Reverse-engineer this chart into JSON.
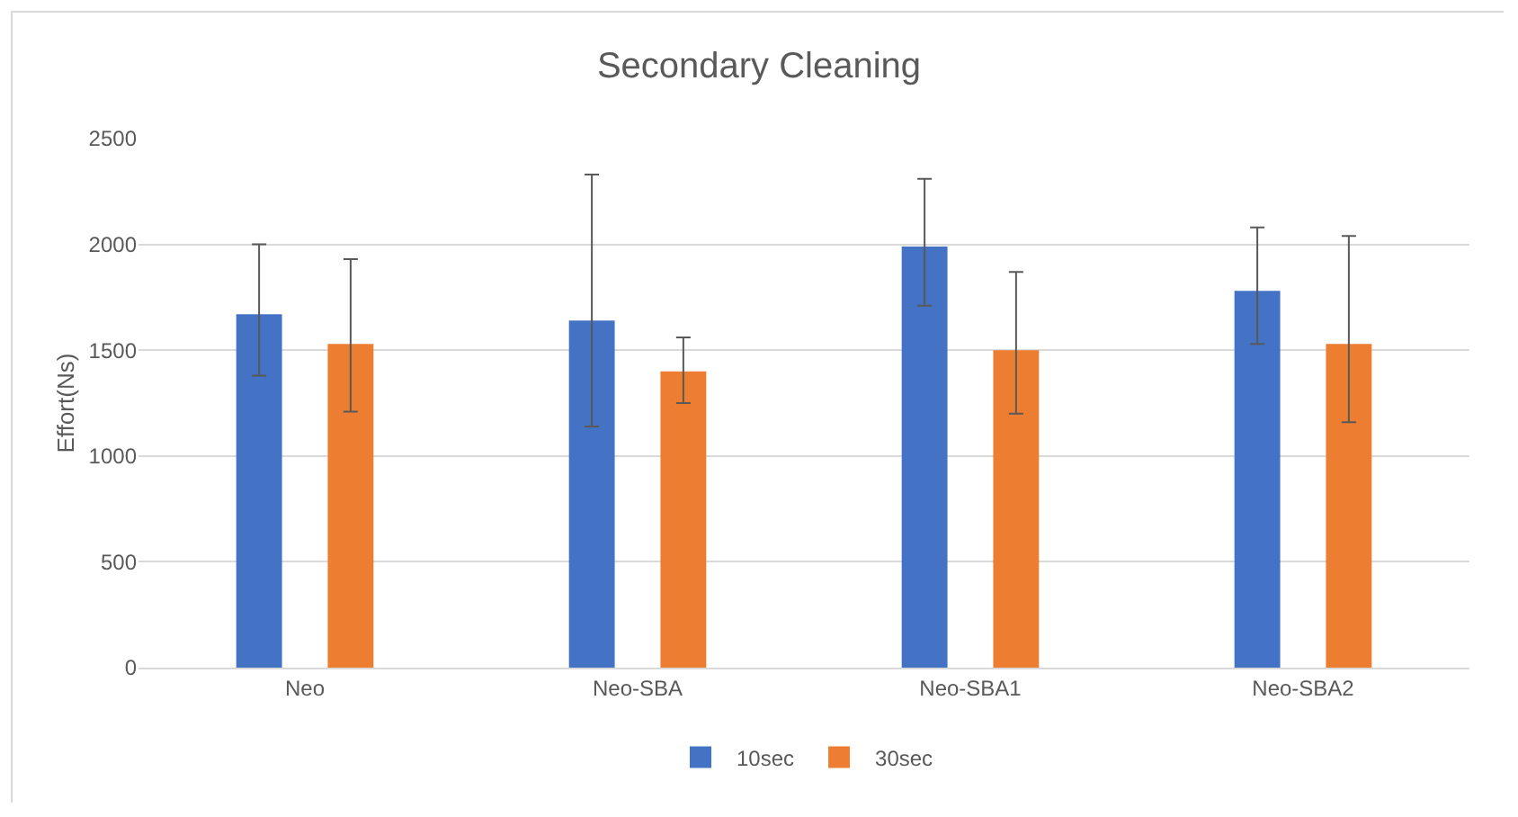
{
  "chart_data": {
    "type": "bar",
    "title": "Secondary Cleaning",
    "ylabel": "Effort(Ns)",
    "categories": [
      "Neo",
      "Neo-SBA",
      "Neo-SBA1",
      "Neo-SBA2"
    ],
    "series": [
      {
        "name": "10sec",
        "color": "#4472c4",
        "values": [
          1670,
          1640,
          1990,
          1780
        ],
        "errors": [
          [
            1380,
            2000
          ],
          [
            1140,
            2330
          ],
          [
            1710,
            2310
          ],
          [
            1530,
            2080
          ]
        ]
      },
      {
        "name": "30sec",
        "color": "#ed7d31",
        "values": [
          1530,
          1400,
          1500,
          1530
        ],
        "errors": [
          [
            1210,
            1930
          ],
          [
            1250,
            1560
          ],
          [
            1200,
            1870
          ],
          [
            1160,
            2040
          ]
        ]
      }
    ],
    "ylim": [
      0,
      2500
    ],
    "yticks": [
      0,
      500,
      1000,
      1500,
      2000,
      2500
    ],
    "grid": "y",
    "legend": "bottom"
  }
}
